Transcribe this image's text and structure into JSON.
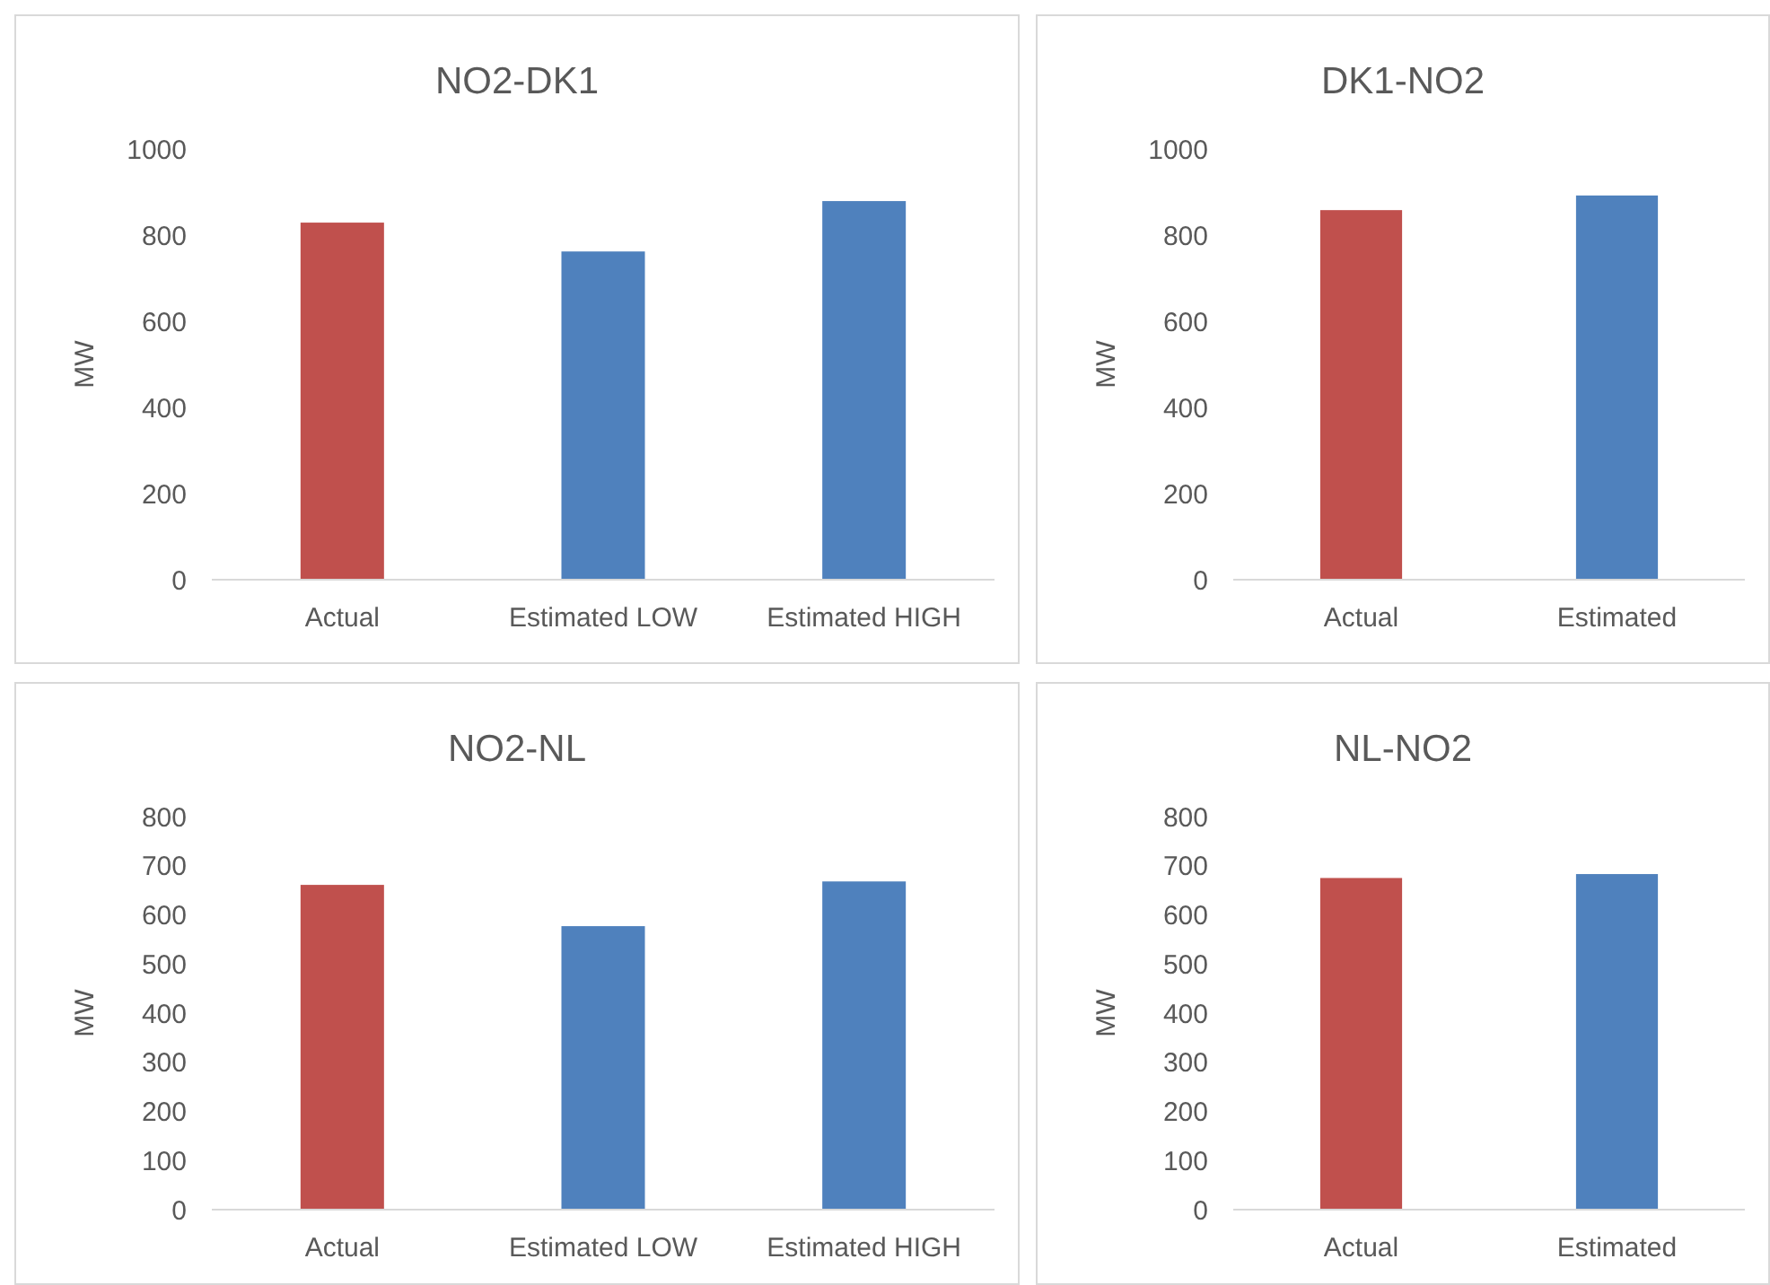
{
  "chart_data": [
    {
      "type": "bar",
      "title": "NO2-DK1",
      "ylabel": "MW",
      "categories": [
        "Actual",
        "Estimated LOW",
        "Estimated HIGH"
      ],
      "values": [
        829,
        762,
        879
      ],
      "colors": [
        "#c0504d",
        "#4f81bd",
        "#4f81bd"
      ],
      "ylim": [
        0,
        1000
      ],
      "yticks": [
        0,
        200,
        400,
        600,
        800,
        1000
      ]
    },
    {
      "type": "bar",
      "title": "DK1-NO2",
      "ylabel": "MW",
      "categories": [
        "Actual",
        "Estimated"
      ],
      "values": [
        858,
        892
      ],
      "colors": [
        "#c0504d",
        "#4f81bd"
      ],
      "ylim": [
        0,
        1000
      ],
      "yticks": [
        0,
        200,
        400,
        600,
        800,
        1000
      ]
    },
    {
      "type": "bar",
      "title": "NO2-NL",
      "ylabel": "MW",
      "categories": [
        "Actual",
        "Estimated LOW",
        "Estimated HIGH"
      ],
      "values": [
        661,
        577,
        668
      ],
      "colors": [
        "#c0504d",
        "#4f81bd",
        "#4f81bd"
      ],
      "ylim": [
        0,
        800
      ],
      "yticks": [
        0,
        100,
        200,
        300,
        400,
        500,
        600,
        700,
        800
      ]
    },
    {
      "type": "bar",
      "title": "NL-NO2",
      "ylabel": "MW",
      "categories": [
        "Actual",
        "Estimated"
      ],
      "values": [
        675,
        683
      ],
      "colors": [
        "#c0504d",
        "#4f81bd"
      ],
      "ylim": [
        0,
        800
      ],
      "yticks": [
        0,
        100,
        200,
        300,
        400,
        500,
        600,
        700,
        800
      ]
    }
  ]
}
